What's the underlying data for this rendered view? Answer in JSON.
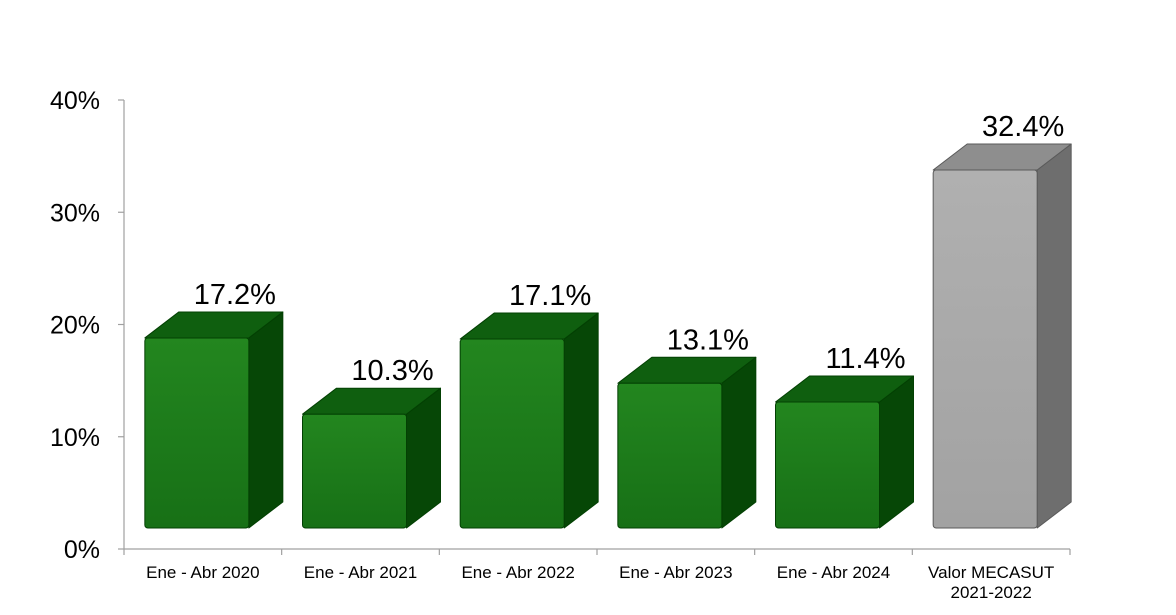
{
  "chart_data": {
    "type": "bar",
    "title": "",
    "xlabel": "",
    "ylabel": "",
    "ylim": [
      0,
      40
    ],
    "y_ticks": [
      0,
      10,
      20,
      30,
      40
    ],
    "y_tick_labels": [
      "0%",
      "10%",
      "20%",
      "30%",
      "40%"
    ],
    "grid": false,
    "legend": "none",
    "style": "3d",
    "categories": [
      [
        "Ene - Abr 2020"
      ],
      [
        "Ene - Abr 2021"
      ],
      [
        "Ene - Abr 2022"
      ],
      [
        "Ene - Abr 2023"
      ],
      [
        "Ene - Abr 2024"
      ],
      [
        "Valor MECASUT",
        "2021-2022"
      ]
    ],
    "values": [
      17.2,
      10.3,
      17.1,
      13.1,
      11.4,
      32.4
    ],
    "data_labels": [
      "17.2%",
      "10.3%",
      "17.1%",
      "13.1%",
      "11.4%",
      "32.4%"
    ],
    "colors": [
      "#1e7a1e",
      "#1e7a1e",
      "#1e7a1e",
      "#1e7a1e",
      "#1e7a1e",
      "#a8a8a8"
    ]
  }
}
